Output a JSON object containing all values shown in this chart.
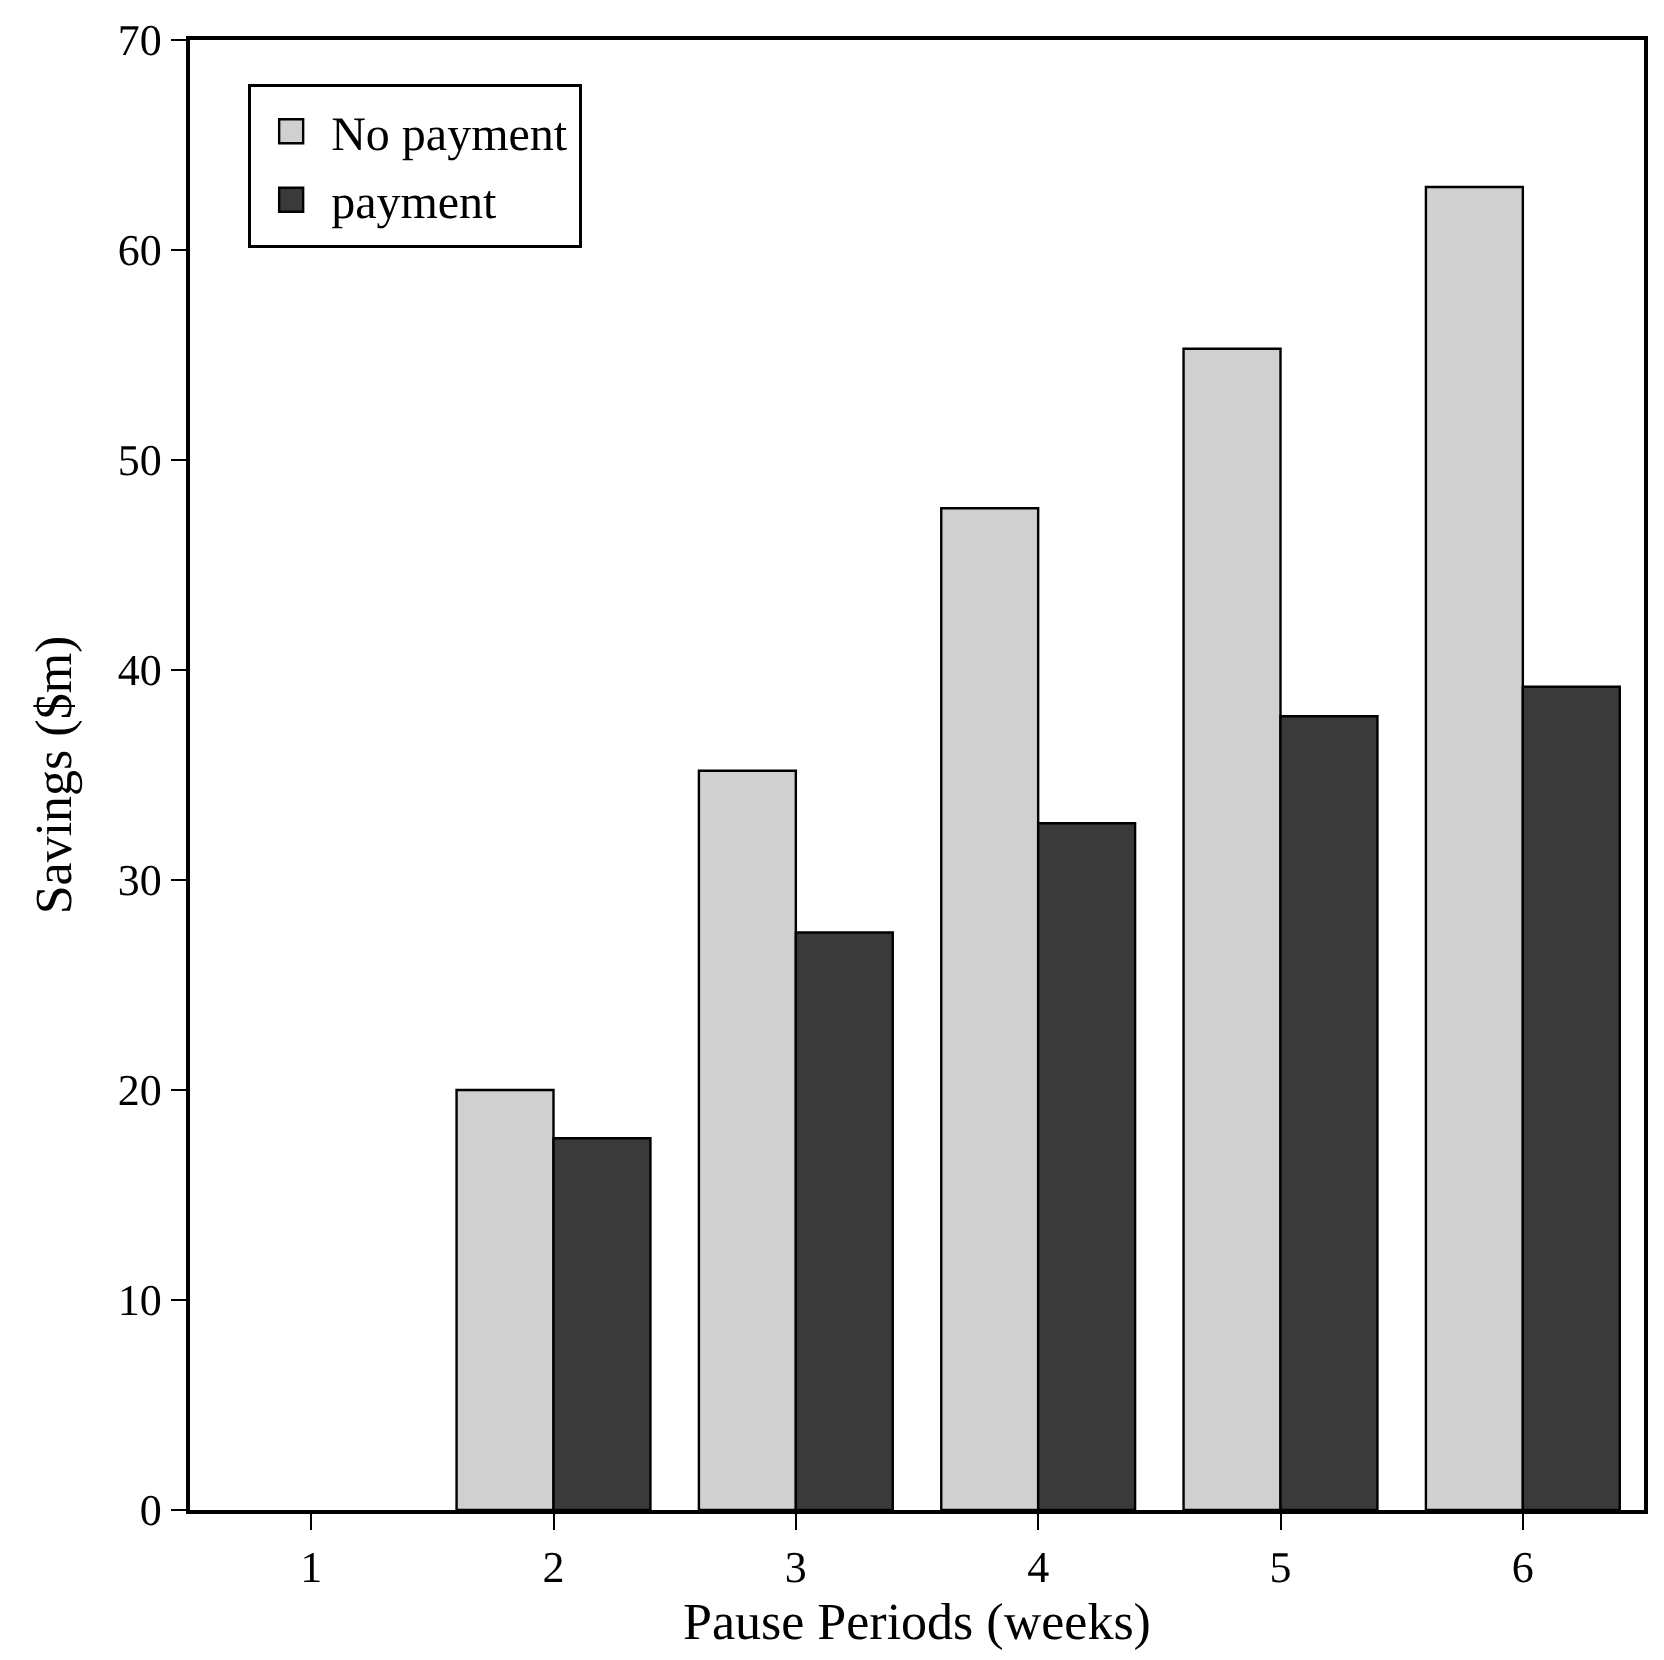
{
  "chart_data": {
    "type": "bar",
    "xlabel": "Pause Periods (weeks)",
    "ylabel": "Savings ($m)",
    "categories": [
      "1",
      "2",
      "3",
      "4",
      "5",
      "6"
    ],
    "series": [
      {
        "name": "No payment",
        "color": "#d0d0d0",
        "values": [
          null,
          20.0,
          35.2,
          47.7,
          55.3,
          63.0
        ]
      },
      {
        "name": "payment",
        "color": "#3a3a3a",
        "values": [
          null,
          17.7,
          27.5,
          32.7,
          37.8,
          39.2
        ]
      }
    ],
    "ylim": [
      0,
      70
    ],
    "yticks": [
      0,
      10,
      20,
      30,
      40,
      50,
      60,
      70
    ],
    "grid": false,
    "legend": "top left"
  }
}
